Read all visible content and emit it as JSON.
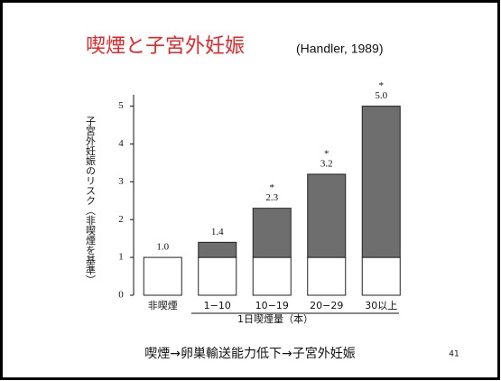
{
  "chart_data": {
    "type": "bar",
    "title": "喫煙と子宮外妊娠",
    "subtitle": "(Handler, 1989)",
    "y_label": "子宮外妊娠のリスク（非喫煙を基準）",
    "x_label": "1日喫煙量（本）",
    "categories": [
      "非喫煙",
      "1−10",
      "10−19",
      "20−29",
      "30以上"
    ],
    "values": [
      1,
      1.4,
      2.3,
      3.2,
      5
    ],
    "value_labels": [
      "1.0",
      "1.4",
      "2.3",
      "3.2",
      "5.0"
    ],
    "significance": [
      null,
      null,
      "*",
      "*",
      "*"
    ],
    "color": "#6e6e6e",
    "ylim": [
      0,
      5.3
    ],
    "yticks": [
      0,
      1,
      2,
      3,
      4,
      5
    ],
    "footer": "喫煙→卵巣輸送能力低下→子宮外妊娠",
    "page_number": "41"
  }
}
